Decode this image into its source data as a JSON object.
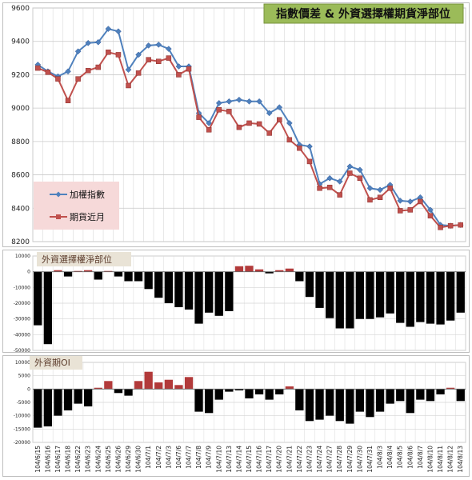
{
  "chart_data": [
    {
      "type": "line",
      "title": "指數價差 & 外資選擇權期貨淨部位",
      "ylim": [
        8200,
        9600
      ],
      "yticks": [
        8200,
        8400,
        8600,
        8800,
        9000,
        9200,
        9400,
        9600
      ],
      "grid": true,
      "legend": "bottom-left",
      "categories": [
        "104/6/15",
        "104/6/16",
        "104/6/17",
        "104/6/18",
        "104/6/22",
        "104/6/23",
        "104/6/24",
        "104/6/25",
        "104/6/26",
        "104/6/29",
        "104/6/30",
        "104/7/1",
        "104/7/2",
        "104/7/3",
        "104/7/6",
        "104/7/7",
        "104/7/8",
        "104/7/9",
        "104/7/10",
        "104/7/13",
        "104/7/14",
        "104/7/15",
        "104/7/16",
        "104/7/17",
        "104/7/20",
        "104/7/21",
        "104/7/22",
        "104/7/23",
        "104/7/24",
        "104/7/27",
        "104/7/28",
        "104/7/29",
        "104/7/30",
        "104/7/31",
        "104/8/3",
        "104/8/4",
        "104/8/5",
        "104/8/6",
        "104/8/7",
        "104/8/10",
        "104/8/11",
        "104/8/12",
        "104/8/13"
      ],
      "series": [
        {
          "name": "加權指數",
          "color": "#4f81bd",
          "marker": "diamond",
          "values": [
            9260,
            9220,
            9190,
            9220,
            9340,
            9390,
            9395,
            9475,
            9460,
            9230,
            9320,
            9375,
            9380,
            9355,
            9250,
            9250,
            8970,
            8910,
            9030,
            9040,
            9050,
            9040,
            9040,
            8970,
            9005,
            8910,
            8780,
            8770,
            8545,
            8580,
            8560,
            8650,
            8630,
            8520,
            8510,
            8540,
            8445,
            8440,
            8465,
            8390,
            8300,
            8295,
            8300
          ]
        },
        {
          "name": "期貨近月",
          "color": "#c0504d",
          "marker": "square",
          "values": [
            9240,
            9215,
            9175,
            9045,
            9175,
            9225,
            9245,
            9335,
            9320,
            9135,
            9210,
            9290,
            9280,
            9300,
            9200,
            9235,
            8945,
            8870,
            8990,
            8980,
            8885,
            8910,
            8905,
            8850,
            8930,
            8810,
            8760,
            8680,
            8520,
            8525,
            8480,
            8610,
            8580,
            8450,
            8465,
            8520,
            8385,
            8390,
            8440,
            8355,
            8285,
            8295,
            8300
          ]
        }
      ]
    },
    {
      "type": "bar",
      "title": "外資選擇權淨部位",
      "ylim": [
        -50000,
        10000
      ],
      "yticks": [
        10000,
        0,
        -10000,
        -20000,
        -30000,
        -40000,
        -50000
      ],
      "pos_color": "#b23a3a",
      "neg_color": "#000000",
      "values": [
        -34000,
        -46000,
        1000,
        -3000,
        500,
        1000,
        -5000,
        500,
        -3000,
        -6000,
        -6000,
        -11000,
        -16500,
        -20000,
        -22500,
        -24000,
        -33000,
        -26000,
        -28000,
        -25000,
        3500,
        3800,
        1500,
        -1000,
        1000,
        2000,
        -6000,
        -16000,
        -23000,
        -29500,
        -36000,
        -36000,
        -30000,
        -30000,
        -29000,
        -26500,
        -32500,
        -35000,
        -32000,
        -33000,
        -33500,
        -31000,
        -26000
      ]
    },
    {
      "type": "bar",
      "title": "外資期OI",
      "ylim": [
        -20000,
        10000
      ],
      "yticks": [
        10000,
        5000,
        0,
        -5000,
        -10000,
        -15000,
        -20000
      ],
      "pos_color": "#b23a3a",
      "neg_color": "#000000",
      "values": [
        -14500,
        -14000,
        -10000,
        -8000,
        -5500,
        -6500,
        500,
        3000,
        -1500,
        -2500,
        3000,
        6500,
        2500,
        3500,
        1500,
        4500,
        -8500,
        -9000,
        -4000,
        -1000,
        -500,
        -3500,
        -2000,
        -4000,
        -2000,
        1000,
        -8000,
        -12000,
        -11500,
        -10000,
        -12000,
        -13000,
        -8500,
        -10500,
        -8500,
        -5500,
        -4500,
        -9000,
        -4000,
        -4500,
        -2000,
        500,
        -4500
      ]
    }
  ]
}
